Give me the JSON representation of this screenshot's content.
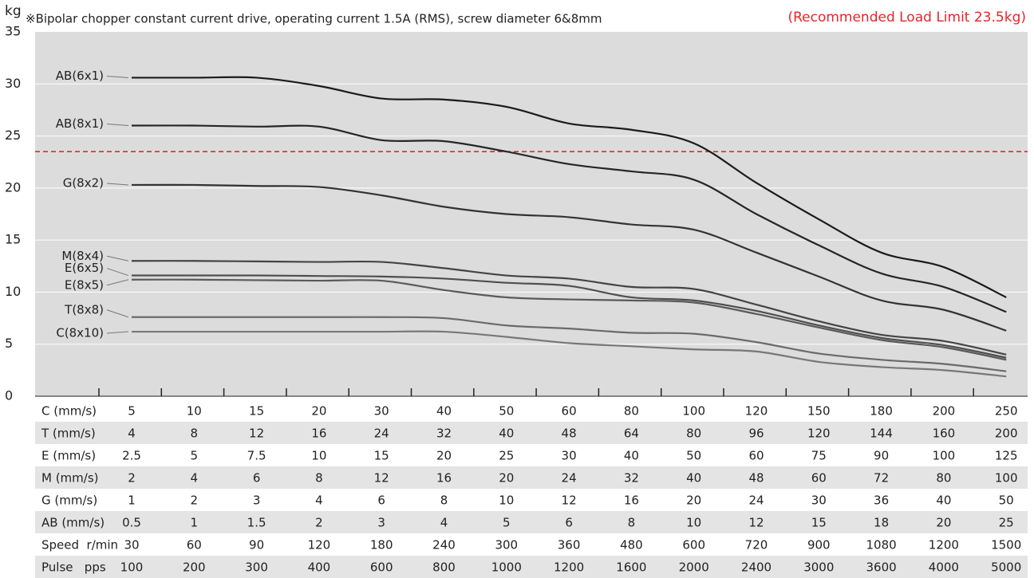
{
  "chart_data": {
    "type": "line",
    "y_label": "kg",
    "subtitle": "※Bipolar chopper constant current drive, operating current 1.5A (RMS), screw diameter 6&8mm",
    "annotation": "(Recommended Load Limit 23.5kg)",
    "reference_line": {
      "value": 23.5,
      "color": "#e8242b"
    },
    "ylim": [
      0,
      35
    ],
    "yticks": [
      0,
      5,
      10,
      15,
      20,
      25,
      30,
      35
    ],
    "grid": true,
    "series": [
      {
        "name": "AB(6x1)",
        "color": "#1b1b1b",
        "values": [
          30.6,
          30.6,
          30.6,
          29.8,
          28.6,
          28.5,
          27.8,
          26.2,
          25.6,
          24.3,
          20.5,
          17,
          13.8,
          12.4,
          9.5
        ]
      },
      {
        "name": "AB(8x1)",
        "color": "#262626",
        "values": [
          26,
          26,
          25.9,
          25.9,
          24.6,
          24.5,
          23.5,
          22.3,
          21.6,
          20.8,
          17.5,
          14.5,
          11.8,
          10.5,
          8.1
        ]
      },
      {
        "name": "G(8x2)",
        "color": "#333333",
        "values": [
          20.3,
          20.3,
          20.2,
          20.1,
          19.3,
          18.2,
          17.5,
          17.2,
          16.5,
          16,
          13.8,
          11.5,
          9.2,
          8.3,
          6.3
        ]
      },
      {
        "name": "M(8x4)",
        "color": "#444444",
        "values": [
          13,
          13,
          12.95,
          12.9,
          12.9,
          12.3,
          11.6,
          11.3,
          10.5,
          10.3,
          8.8,
          7.2,
          5.9,
          5.3,
          4
        ]
      },
      {
        "name": "E(6x5)",
        "color": "#4f4f4f",
        "values": [
          11.6,
          11.6,
          11.6,
          11.55,
          11.5,
          11.3,
          10.9,
          10.6,
          9.5,
          9.2,
          8.2,
          6.8,
          5.6,
          4.9,
          3.7
        ]
      },
      {
        "name": "E(8x5)",
        "color": "#5a5a5a",
        "values": [
          11.2,
          11.2,
          11.15,
          11.1,
          11.1,
          10.2,
          9.5,
          9.3,
          9.2,
          9,
          7.9,
          6.6,
          5.4,
          4.7,
          3.5
        ]
      },
      {
        "name": "T(8x8)",
        "color": "#6a6a6a",
        "values": [
          7.6,
          7.6,
          7.6,
          7.6,
          7.6,
          7.5,
          6.8,
          6.5,
          6.1,
          6,
          5.2,
          4.1,
          3.5,
          3.1,
          2.4
        ]
      },
      {
        "name": "C(8x10)",
        "color": "#777777",
        "values": [
          6.2,
          6.2,
          6.2,
          6.2,
          6.2,
          6.2,
          5.7,
          5.1,
          4.8,
          4.5,
          4.3,
          3.3,
          2.8,
          2.5,
          1.9
        ]
      }
    ]
  },
  "table": {
    "rows": [
      [
        "C (mm/s)",
        5,
        10,
        15,
        20,
        30,
        40,
        50,
        60,
        80,
        100,
        120,
        150,
        180,
        200,
        250
      ],
      [
        "T (mm/s)",
        4,
        8,
        12,
        16,
        24,
        32,
        40,
        48,
        64,
        80,
        96,
        120,
        144,
        160,
        200
      ],
      [
        "E (mm/s)",
        2.5,
        5,
        7.5,
        10,
        15,
        20,
        25,
        30,
        40,
        50,
        60,
        75,
        90,
        100,
        125
      ],
      [
        "M (mm/s)",
        2,
        4,
        6,
        8,
        12,
        16,
        20,
        24,
        32,
        40,
        48,
        60,
        72,
        80,
        100
      ],
      [
        "G (mm/s)",
        1,
        2,
        3,
        4,
        6,
        8,
        10,
        12,
        16,
        20,
        24,
        30,
        36,
        40,
        50
      ],
      [
        "AB (mm/s)",
        0.5,
        1,
        1.5,
        2,
        3,
        4,
        5,
        6,
        8,
        10,
        12,
        15,
        18,
        20,
        25
      ],
      [
        "Speed  r/min",
        30,
        60,
        90,
        120,
        180,
        240,
        300,
        360,
        480,
        600,
        720,
        900,
        1080,
        1200,
        1500
      ],
      [
        "Pulse   pps",
        100,
        200,
        300,
        400,
        600,
        800,
        1000,
        1200,
        1600,
        2000,
        2400,
        3000,
        3600,
        4000,
        5000
      ]
    ]
  }
}
